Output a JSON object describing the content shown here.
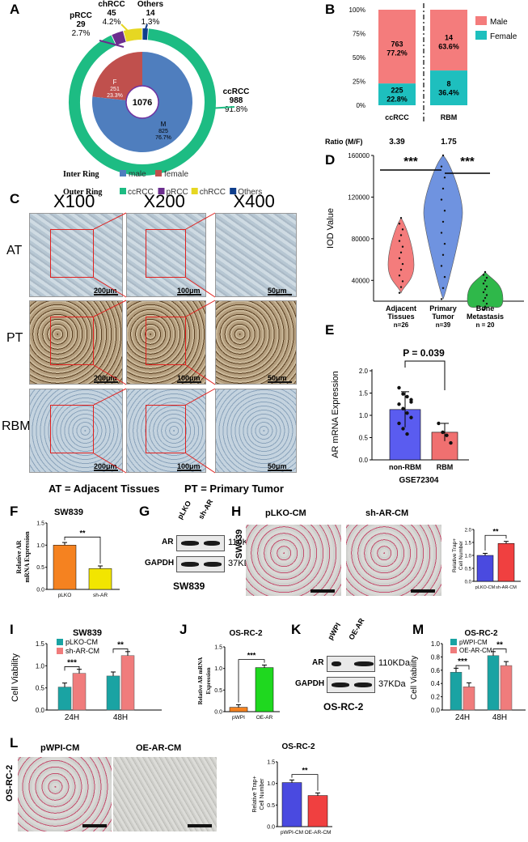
{
  "panels": {
    "A": "A",
    "B": "B",
    "C": "C",
    "D": "D",
    "E": "E",
    "F": "F",
    "G": "G",
    "H": "H",
    "I": "I",
    "J": "J",
    "K": "K",
    "L": "L",
    "M": "M"
  },
  "A": {
    "center_total": "1076",
    "outer": [
      {
        "name": "ccRCC",
        "count": "988",
        "pct": "91.8%",
        "color": "#1dbc83"
      },
      {
        "name": "pRCC",
        "count": "29",
        "pct": "2.7%",
        "color": "#6b2d8e"
      },
      {
        "name": "chRCC",
        "count": "45",
        "pct": "4.2%",
        "color": "#e6d722"
      },
      {
        "name": "Others",
        "count": "14",
        "pct": "1.3%",
        "color": "#0f3e8c"
      }
    ],
    "inner": [
      {
        "name": "M",
        "count": "825",
        "pct": "76.7%",
        "color": "#4f7ebe"
      },
      {
        "name": "F",
        "count": "251",
        "pct": "23.3%",
        "color": "#c0504d"
      }
    ],
    "legend_inner_title": "Inter Ring",
    "legend_inner": [
      "male",
      "female"
    ],
    "legend_outer_title": "Outer Ring",
    "legend_outer": [
      "ccRCC",
      "pRCC",
      "chRCC",
      "Others"
    ]
  },
  "B": {
    "yticks": [
      "100%",
      "75%",
      "50%",
      "25%",
      "0%"
    ],
    "bars": [
      {
        "name": "ccRCC",
        "male": "763",
        "male_pct": "77.2%",
        "female": "225",
        "female_pct": "22.8%",
        "ratio": "3.39"
      },
      {
        "name": "RBM",
        "male": "14",
        "male_pct": "63.6%",
        "female": "8",
        "female_pct": "36.4%",
        "ratio": "1.75"
      }
    ],
    "legend": [
      "Male",
      "Female"
    ],
    "ratio_label": "Ratio (M/F)",
    "colors": {
      "male": "#f47c7c",
      "female": "#1ebfbe"
    }
  },
  "C": {
    "cols": [
      "X100",
      "X200",
      "X400"
    ],
    "rows": [
      "AT",
      "PT",
      "RBM"
    ],
    "scales": [
      "200μm",
      "100μm",
      "50μm"
    ],
    "footer_left": "AT = Adjacent Tissues",
    "footer_right": "PT = Primary Tumor"
  },
  "D": {
    "ylabel": "IOD Value",
    "yticks": [
      "160000",
      "120000",
      "80000",
      "40000"
    ],
    "groups": [
      {
        "name": "Adjacent",
        "name2": "Tissues",
        "n": "n=26",
        "color": "#f47c7c"
      },
      {
        "name": "Primary",
        "name2": "Tumor",
        "n": "n=39",
        "color": "#6f93e0"
      },
      {
        "name": "Bone",
        "name2": "Metastasis",
        "n": "n = 20",
        "color": "#2fb84a"
      }
    ],
    "sig1": "***",
    "sig2": "***"
  },
  "E": {
    "ylabel": "AR mRNA Expression",
    "yticks": [
      "2.0",
      "1.5",
      "1.0",
      "0.5",
      "0.0"
    ],
    "pval": "P = 0.039",
    "groups": [
      {
        "name": "non-RBM",
        "value": 1.13,
        "color": "#5a5cf0"
      },
      {
        "name": "RBM",
        "value": 0.62,
        "color": "#f07070"
      }
    ],
    "xlabel": "GSE72304"
  },
  "F": {
    "title": "SW839",
    "ylabel1": "Relative AR",
    "ylabel2": "mRNA Expression",
    "groups": [
      {
        "name": "pLKO",
        "value": 1.0,
        "color": "#f58220"
      },
      {
        "name": "sh-AR",
        "value": 0.47,
        "color": "#f2e500"
      }
    ],
    "sig": "**",
    "yticks": [
      "1.5",
      "1.0",
      "0.5",
      "0.0"
    ]
  },
  "G": {
    "lanes": [
      "pLKO",
      "sh-AR"
    ],
    "rows": [
      {
        "name": "AR",
        "size": "110KDa"
      },
      {
        "name": "GAPDH",
        "size": "37KDa"
      }
    ],
    "caption": "SW839"
  },
  "H": {
    "row": "SW839",
    "titles": [
      "pLKO-CM",
      "sh-AR-CM"
    ],
    "ylabel1": "Relative Trap+",
    "ylabel2": "Cell Number",
    "groups": [
      {
        "name": "pLKO-CM",
        "value": 1.0,
        "color": "#4a4ae0"
      },
      {
        "name": "sh-AR-CM",
        "value": 1.46,
        "color": "#f04040"
      }
    ],
    "sig": "**",
    "yticks": [
      "2.0",
      "1.5",
      "1.0",
      "0.5",
      "0.0"
    ]
  },
  "I": {
    "title": "SW839",
    "ylabel": "Cell Viability",
    "legend": [
      "pLKO-CM",
      "sh-AR-CM"
    ],
    "colors": [
      "#1aa3a3",
      "#f07c7c"
    ],
    "groups": [
      {
        "name": "24H",
        "values": [
          0.52,
          0.83
        ]
      },
      {
        "name": "48H",
        "values": [
          0.77,
          1.23
        ]
      }
    ],
    "sig": [
      "***",
      "**"
    ],
    "yticks": [
      "1.5",
      "1.0",
      "0.5",
      "0.0"
    ]
  },
  "J": {
    "title": "OS-RC-2",
    "ylabel1": "Relative AR mRNA",
    "ylabel2": "Expression",
    "groups": [
      {
        "name": "pWPI",
        "value": 0.1,
        "color": "#f58220"
      },
      {
        "name": "OE-AR",
        "value": 1.02,
        "color": "#1fd81f"
      }
    ],
    "sig": "***",
    "yticks": [
      "1.5",
      "1.0",
      "0.5",
      "0.0"
    ]
  },
  "K": {
    "lanes": [
      "pWPI",
      "OE-AR"
    ],
    "rows": [
      {
        "name": "AR",
        "size": "110KDa"
      },
      {
        "name": "GAPDH",
        "size": "37KDa"
      }
    ],
    "caption": "OS-RC-2"
  },
  "M": {
    "title": "OS-RC-2",
    "ylabel": "Cell Viability",
    "legend": [
      "pWPI-CM",
      "OE-AR-CM"
    ],
    "colors": [
      "#1aa3a3",
      "#f07c7c"
    ],
    "groups": [
      {
        "name": "24H",
        "values": [
          0.57,
          0.35
        ]
      },
      {
        "name": "48H",
        "values": [
          0.82,
          0.67
        ]
      }
    ],
    "sig": [
      "***",
      "**"
    ],
    "yticks": [
      "1.0",
      "0.8",
      "0.6",
      "0.4",
      "0.2",
      "0.0"
    ]
  },
  "L": {
    "row": "OS-RC-2",
    "titles": [
      "pWPI-CM",
      "OE-AR-CM"
    ],
    "title": "OS-RC-2",
    "ylabel1": "Relative Trap+",
    "ylabel2": "Cell Number",
    "groups": [
      {
        "name": "pWPI-CM",
        "value": 1.02,
        "color": "#4a4ae0"
      },
      {
        "name": "OE-AR-CM",
        "value": 0.72,
        "color": "#f04040"
      }
    ],
    "sig": "**",
    "yticks": [
      "1.5",
      "1.0",
      "0.5",
      "0.0"
    ]
  }
}
